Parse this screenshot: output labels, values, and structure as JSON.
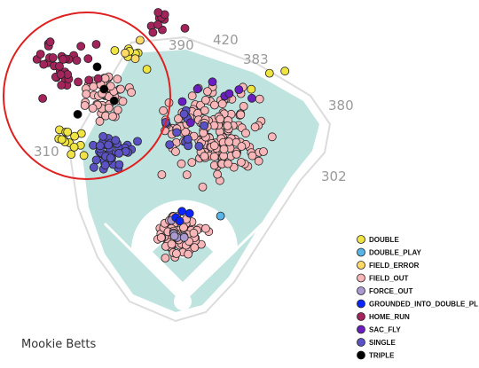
{
  "chart_data": {
    "type": "scatter",
    "title": "",
    "subtitle": "",
    "caption": "Mookie Betts",
    "field_distances": [
      "390",
      "420",
      "383",
      "380",
      "302",
      "310"
    ],
    "annotations": [
      "red-circle-around-left-field-corner"
    ],
    "legend_placement": "bottom-right",
    "grid": false,
    "series": [
      {
        "name": "DOUBLE",
        "color": "#f0e442",
        "count": 24
      },
      {
        "name": "DOUBLE_PLAY",
        "color": "#56b4e9",
        "count": 1
      },
      {
        "name": "FIELD_ERROR",
        "color": "#ffd966",
        "count": 3
      },
      {
        "name": "FIELD_OUT",
        "color": "#f9b6b8",
        "count": 300
      },
      {
        "name": "FORCE_OUT",
        "color": "#a99ad0",
        "count": 6
      },
      {
        "name": "GROUNDED_INTO_DOUBLE_PL",
        "color": "#0c24ff",
        "count": 4
      },
      {
        "name": "HOME_RUN",
        "color": "#a3245a",
        "count": 46
      },
      {
        "name": "SAC_FLY",
        "color": "#6a1ec2",
        "count": 8
      },
      {
        "name": "SINGLE",
        "color": "#5b52c6",
        "count": 52
      },
      {
        "name": "TRIPLE",
        "color": "#000000",
        "count": 4
      }
    ]
  }
}
